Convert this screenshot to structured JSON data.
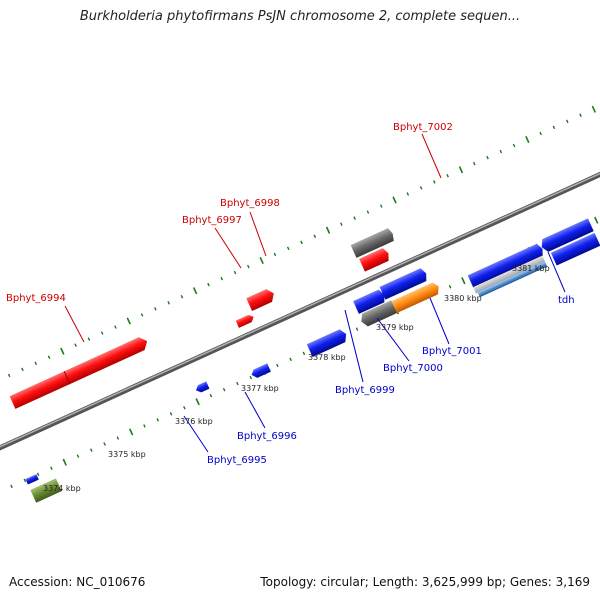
{
  "title": "Burkholderia phytofirmans PsJN chromosome 2, complete sequen...",
  "footer": {
    "accession": "Accession: NC_010676",
    "summary": "Topology: circular; Length: 3,625,999 bp; Genes: 3,169"
  },
  "colors": {
    "backbone": "#808080",
    "forward_label": "#cc0000",
    "reverse_label": "#0000cc",
    "tick": "#1a7a1a",
    "red_gene": "#ff1010",
    "blue_gene": "#1020ee",
    "gray_gene": "#666666",
    "orange_gene": "#ff8a10",
    "olive_gene": "#6a8a30"
  },
  "kbp_ticks": [
    "3374 kbp",
    "3375 kbp",
    "3376 kbp",
    "3377 kbp",
    "3378 kbp",
    "3379 kbp",
    "3380 kbp",
    "3381 kbp"
  ],
  "genes_top": [
    {
      "name": "Bphyt_6994"
    },
    {
      "name": "Bphyt_6997"
    },
    {
      "name": "Bphyt_6998"
    },
    {
      "name": "Bphyt_7002"
    }
  ],
  "genes_bottom": [
    {
      "name": "Bphyt_6995"
    },
    {
      "name": "Bphyt_6996"
    },
    {
      "name": "Bphyt_6999"
    },
    {
      "name": "Bphyt_7000"
    },
    {
      "name": "Bphyt_7001"
    },
    {
      "name": "tdh"
    }
  ]
}
